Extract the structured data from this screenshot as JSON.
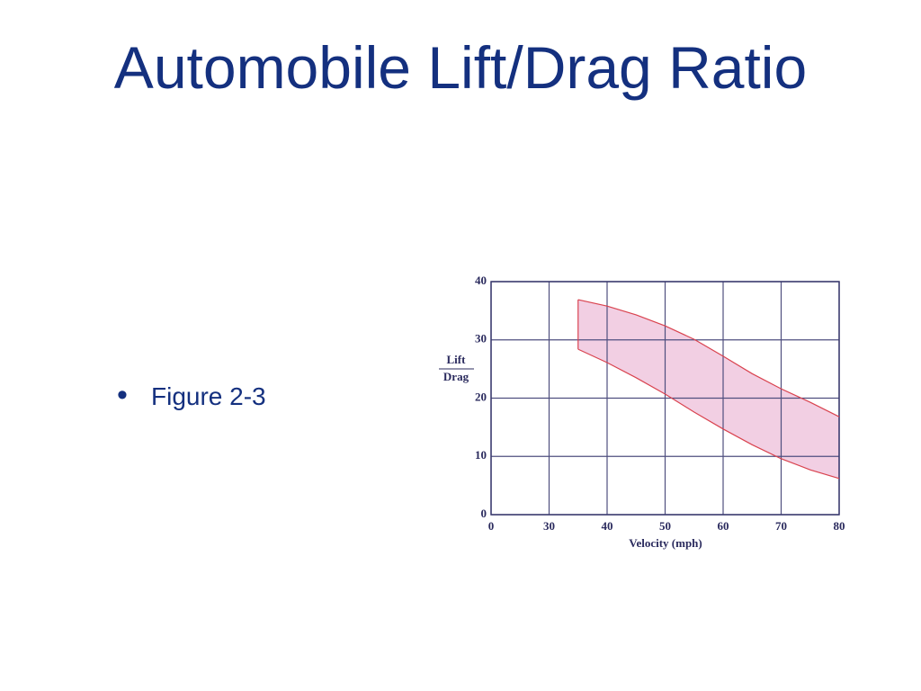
{
  "slide": {
    "title": "Automobile Lift/Drag Ratio",
    "bullets": [
      "Figure 2-3"
    ]
  },
  "chart_data": {
    "type": "area",
    "x_label": "Velocity (mph)",
    "y_label": {
      "numerator": "Lift",
      "denominator": "Drag"
    },
    "x": [
      35,
      40,
      45,
      50,
      55,
      60,
      65,
      70,
      75,
      80
    ],
    "series": [
      {
        "name": "upper",
        "color": "#d9434f",
        "values": [
          36.9,
          35.8,
          34.3,
          32.4,
          30.1,
          27.2,
          24.2,
          21.6,
          19.3,
          16.8
        ]
      },
      {
        "name": "lower",
        "color": "#d9434f",
        "values": [
          28.4,
          26.1,
          23.5,
          20.7,
          17.6,
          14.7,
          12.0,
          9.6,
          7.7,
          6.2
        ]
      }
    ],
    "fill": "#f2cfe3",
    "xlim": [
      0,
      80
    ],
    "xticks": [
      0,
      30,
      40,
      50,
      60,
      70,
      80
    ],
    "ylim": [
      0,
      40
    ],
    "yticks": [
      0,
      10,
      20,
      30,
      40
    ],
    "grid": true
  }
}
